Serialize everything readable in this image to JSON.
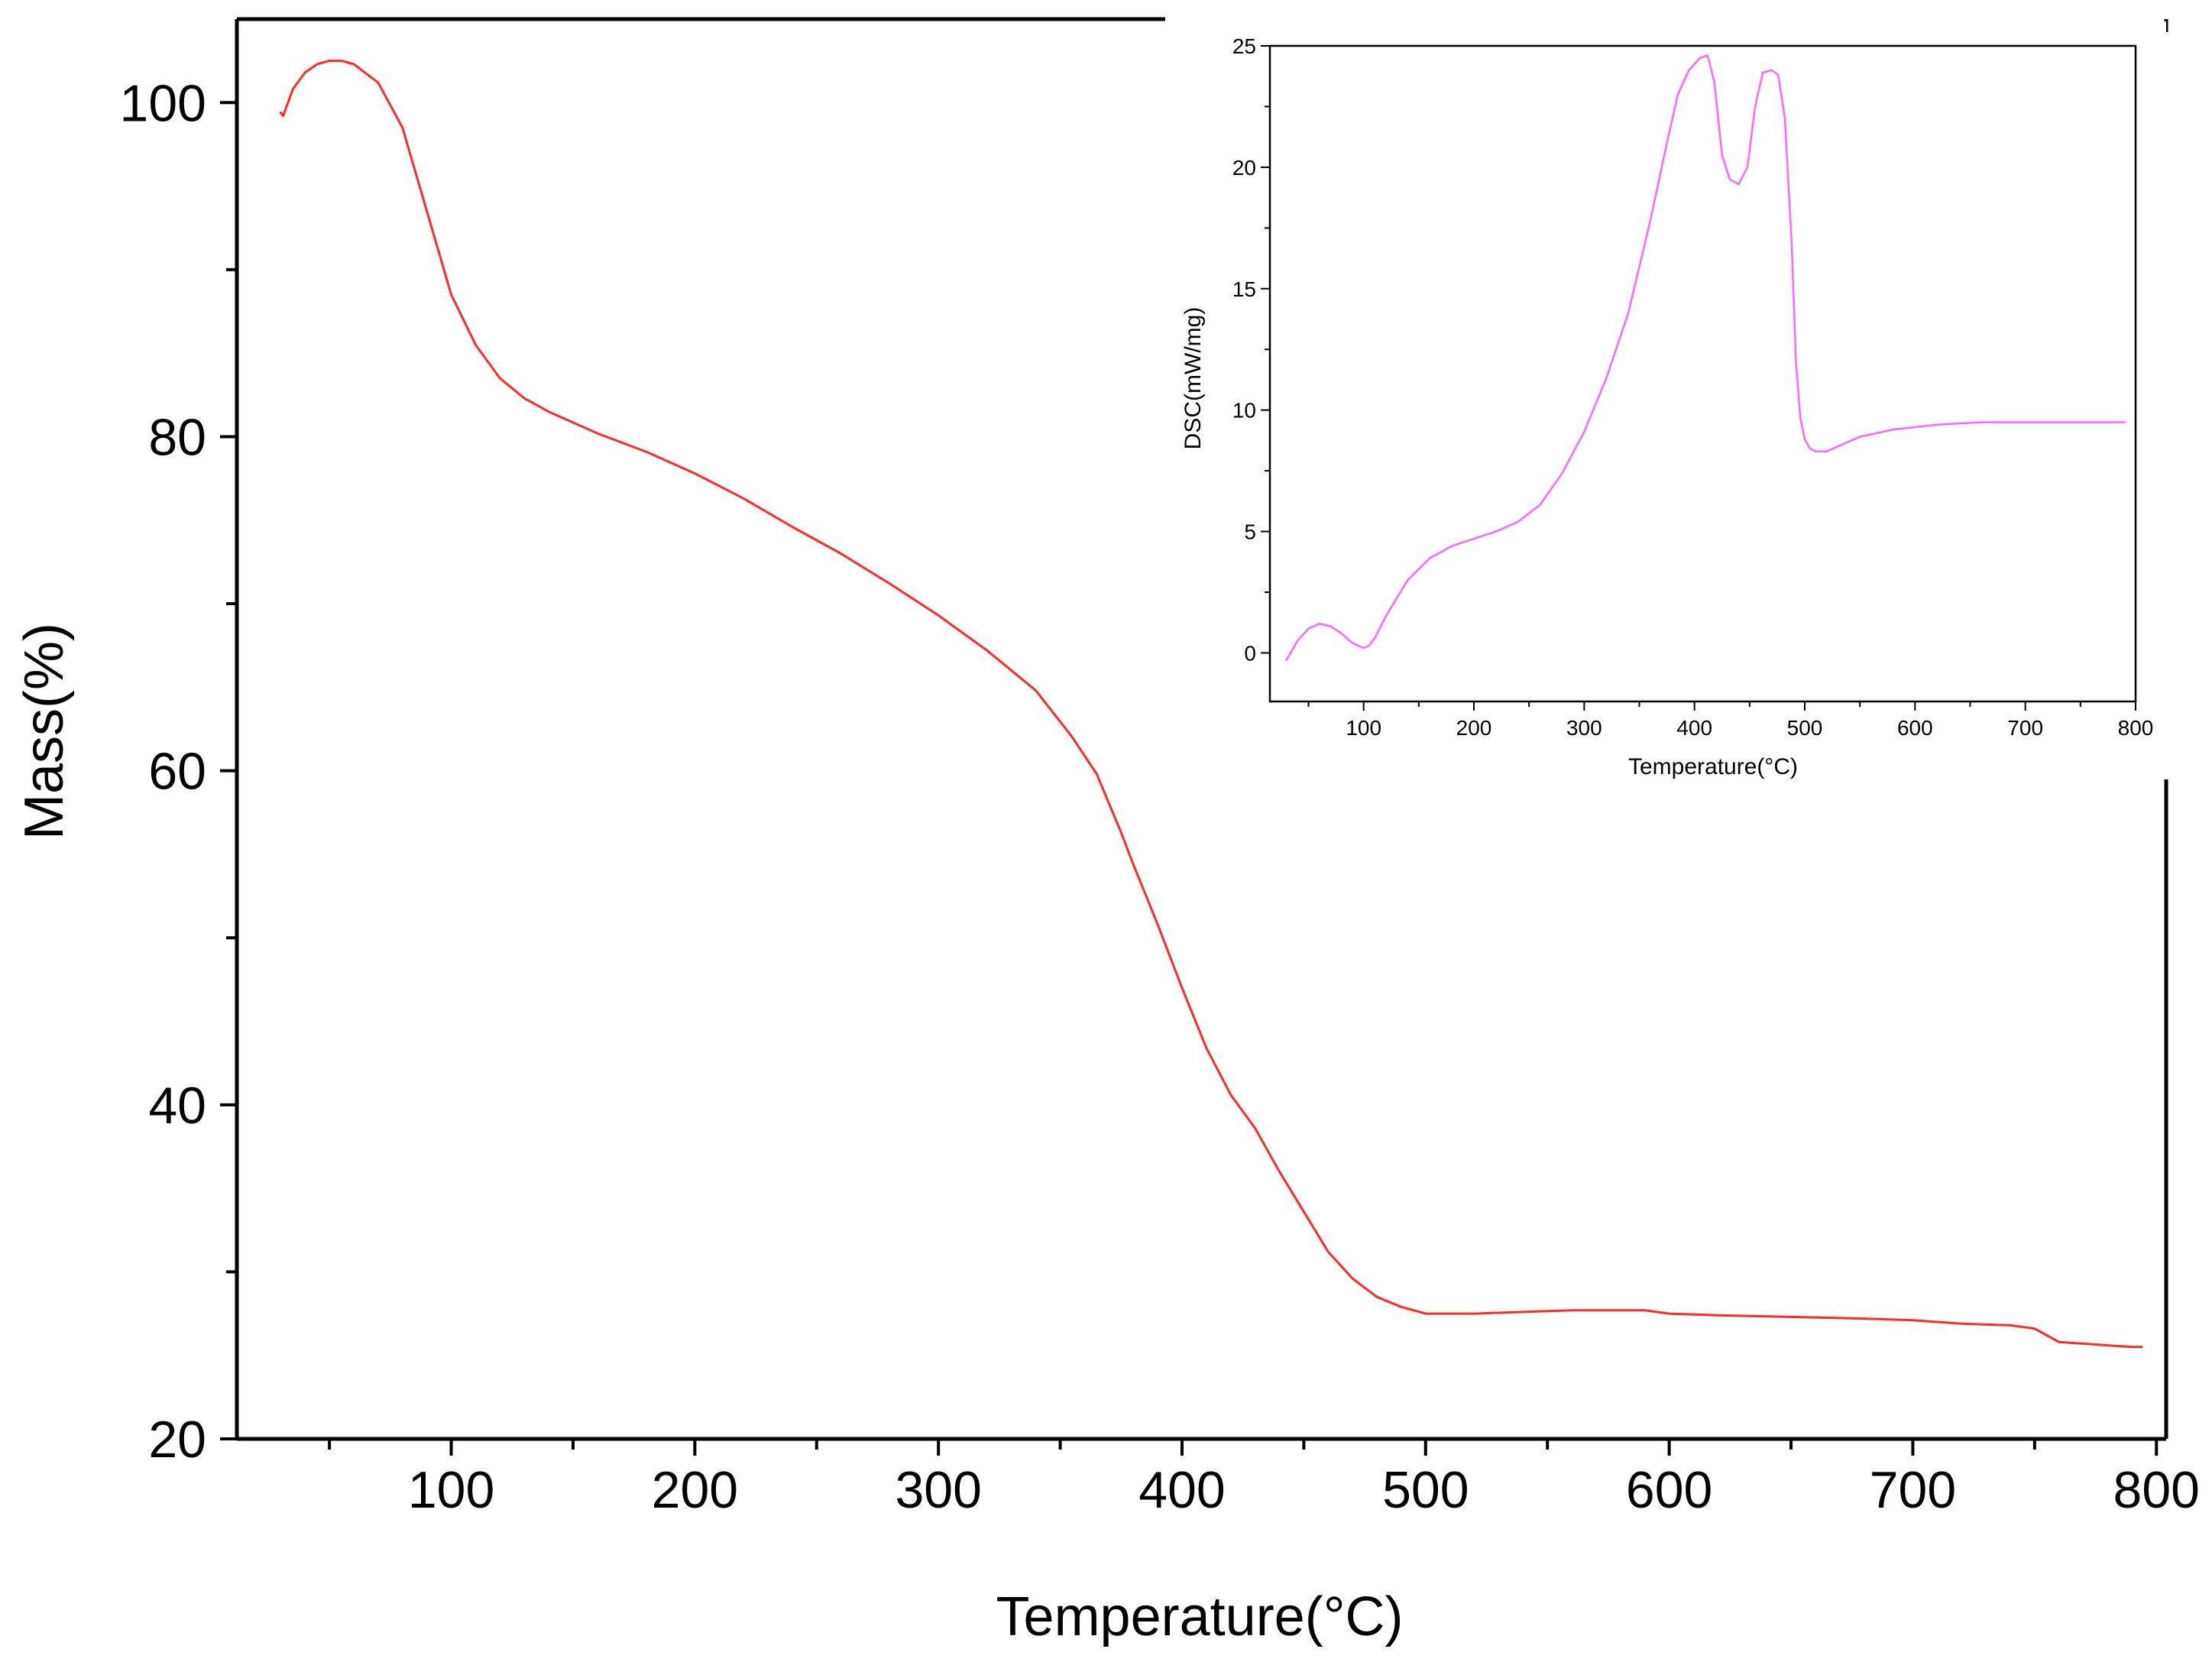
{
  "chart_data": [
    {
      "type": "line",
      "title": "",
      "xlabel": "Temperature(°C)",
      "ylabel": "Mass(%)",
      "xlim": [
        12,
        804
      ],
      "ylim": [
        20,
        105
      ],
      "x_ticks": [
        100,
        200,
        300,
        400,
        500,
        600,
        700,
        800
      ],
      "x_tick_labels": [
        "100",
        "200",
        "300",
        "400",
        "500",
        "600",
        "700",
        "800"
      ],
      "y_ticks": [
        20,
        40,
        60,
        80,
        100
      ],
      "y_tick_labels": [
        "20",
        "40",
        "60",
        "80",
        "100"
      ],
      "grid": false,
      "legend": "none",
      "series": [
        {
          "name": "Mass",
          "color": "#ff2a2a",
          "x": [
            30,
            31,
            35,
            40,
            45,
            50,
            55,
            60,
            70,
            80,
            90,
            100,
            110,
            120,
            130,
            140,
            160,
            180,
            200,
            220,
            240,
            260,
            280,
            300,
            320,
            340,
            355,
            365,
            375,
            380,
            390,
            400,
            410,
            420,
            430,
            440,
            450,
            460,
            470,
            480,
            490,
            500,
            510,
            520,
            540,
            560,
            580,
            590,
            600,
            620,
            650,
            680,
            700,
            720,
            740,
            750,
            755,
            760,
            770,
            780,
            790,
            794
          ],
          "y": [
            99.4,
            99.2,
            100.8,
            101.8,
            102.3,
            102.5,
            102.5,
            102.3,
            101.2,
            98.5,
            93.5,
            88.5,
            85.5,
            83.5,
            82.3,
            81.5,
            80.2,
            79.1,
            77.8,
            76.3,
            74.6,
            73.0,
            71.2,
            69.3,
            67.2,
            64.8,
            62.0,
            59.8,
            56.3,
            54.4,
            50.8,
            47.0,
            43.4,
            40.6,
            38.6,
            36.0,
            33.6,
            31.2,
            29.6,
            28.5,
            27.9,
            27.5,
            27.5,
            27.5,
            27.6,
            27.7,
            27.7,
            27.7,
            27.5,
            27.4,
            27.3,
            27.2,
            27.1,
            26.9,
            26.8,
            26.6,
            26.2,
            25.8,
            25.7,
            25.6,
            25.5,
            25.5
          ]
        }
      ]
    },
    {
      "type": "line",
      "title": "",
      "xlabel": "Temperature(°C)",
      "ylabel": "DSC(mW/mg)",
      "xlim": [
        15,
        800
      ],
      "ylim": [
        -2,
        25
      ],
      "x_ticks": [
        100,
        200,
        300,
        400,
        500,
        600,
        700,
        800
      ],
      "x_tick_labels": [
        "100",
        "200",
        "300",
        "400",
        "500",
        "600",
        "700",
        "800"
      ],
      "y_ticks": [
        0,
        5,
        10,
        15,
        20,
        25
      ],
      "y_tick_labels": [
        "0",
        "5",
        "10",
        "15",
        "20",
        "25"
      ],
      "grid": false,
      "legend": "none",
      "series": [
        {
          "name": "DSC",
          "color": "#ff66ff",
          "x": [
            30,
            40,
            50,
            60,
            70,
            80,
            90,
            100,
            105,
            110,
            120,
            140,
            160,
            180,
            200,
            220,
            240,
            260,
            280,
            300,
            320,
            340,
            360,
            375,
            385,
            395,
            405,
            412,
            418,
            425,
            432,
            440,
            448,
            455,
            462,
            470,
            476,
            482,
            488,
            492,
            496,
            500,
            505,
            510,
            520,
            530,
            550,
            580,
            620,
            660,
            700,
            750,
            790
          ],
          "y": [
            -0.3,
            0.5,
            1.0,
            1.2,
            1.1,
            0.8,
            0.4,
            0.2,
            0.3,
            0.6,
            1.5,
            3.0,
            3.9,
            4.4,
            4.7,
            5.0,
            5.4,
            6.1,
            7.4,
            9.1,
            11.3,
            14.0,
            17.8,
            21.0,
            23.0,
            24.0,
            24.5,
            24.6,
            23.5,
            20.5,
            19.5,
            19.3,
            20.0,
            22.5,
            23.9,
            24.0,
            23.8,
            22.0,
            17.0,
            12.0,
            9.7,
            8.8,
            8.4,
            8.3,
            8.3,
            8.5,
            8.9,
            9.2,
            9.4,
            9.5,
            9.5,
            9.5,
            9.5
          ]
        }
      ]
    }
  ]
}
